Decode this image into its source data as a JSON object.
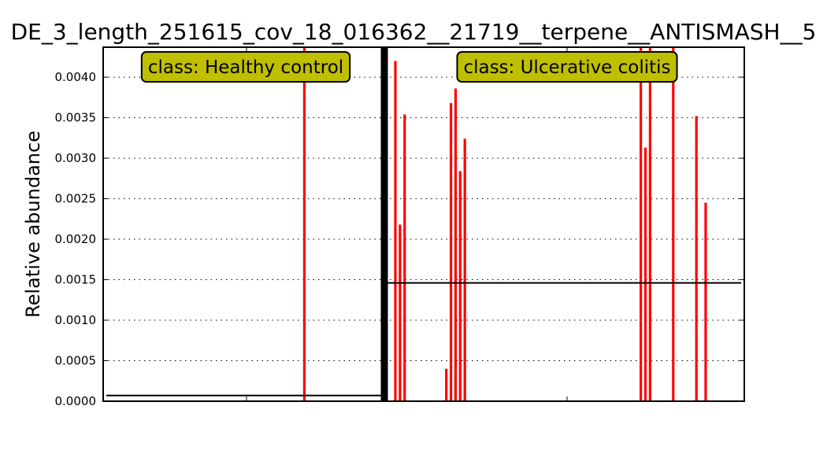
{
  "chart_data": {
    "type": "bar",
    "title": "DE_3_length_251615_cov_18_016362__21719__terpene__ANTISMASH__5",
    "xlabel": "",
    "ylabel": "Relative abundance",
    "ylim": [
      0,
      0.00437
    ],
    "yticks": [
      "0.0000",
      "0.0005",
      "0.0010",
      "0.0015",
      "0.0020",
      "0.0025",
      "0.0030",
      "0.0035",
      "0.0040"
    ],
    "ytick_values": [
      0,
      0.0005,
      0.001,
      0.0015,
      0.002,
      0.0025,
      0.003,
      0.0035,
      0.004
    ],
    "grid": "horizontal-dotted",
    "bar_color": "#ff0000",
    "label_box_color": "#bfbf00",
    "separator_color": "#000000",
    "classes": [
      {
        "label": "class: Healthy control",
        "mean": 7e-05,
        "bars": [
          {
            "sample": 43,
            "value": 0.0045
          }
        ]
      },
      {
        "label": "class: Ulcerative colitis",
        "mean": 0.00146,
        "bars": [
          {
            "sample": 1,
            "value": 0.0042
          },
          {
            "sample": 2,
            "value": 0.00218
          },
          {
            "sample": 3,
            "value": 0.00354
          },
          {
            "sample": 12,
            "value": 0.0004
          },
          {
            "sample": 13,
            "value": 0.00368
          },
          {
            "sample": 14,
            "value": 0.00386
          },
          {
            "sample": 15,
            "value": 0.00284
          },
          {
            "sample": 16,
            "value": 0.00324
          },
          {
            "sample": 54,
            "value": 0.0045
          },
          {
            "sample": 55,
            "value": 0.00313
          },
          {
            "sample": 56,
            "value": 0.0045
          },
          {
            "sample": 61,
            "value": 0.0045
          },
          {
            "sample": 66,
            "value": 0.00352
          },
          {
            "sample": 68,
            "value": 0.00245
          }
        ]
      }
    ]
  }
}
